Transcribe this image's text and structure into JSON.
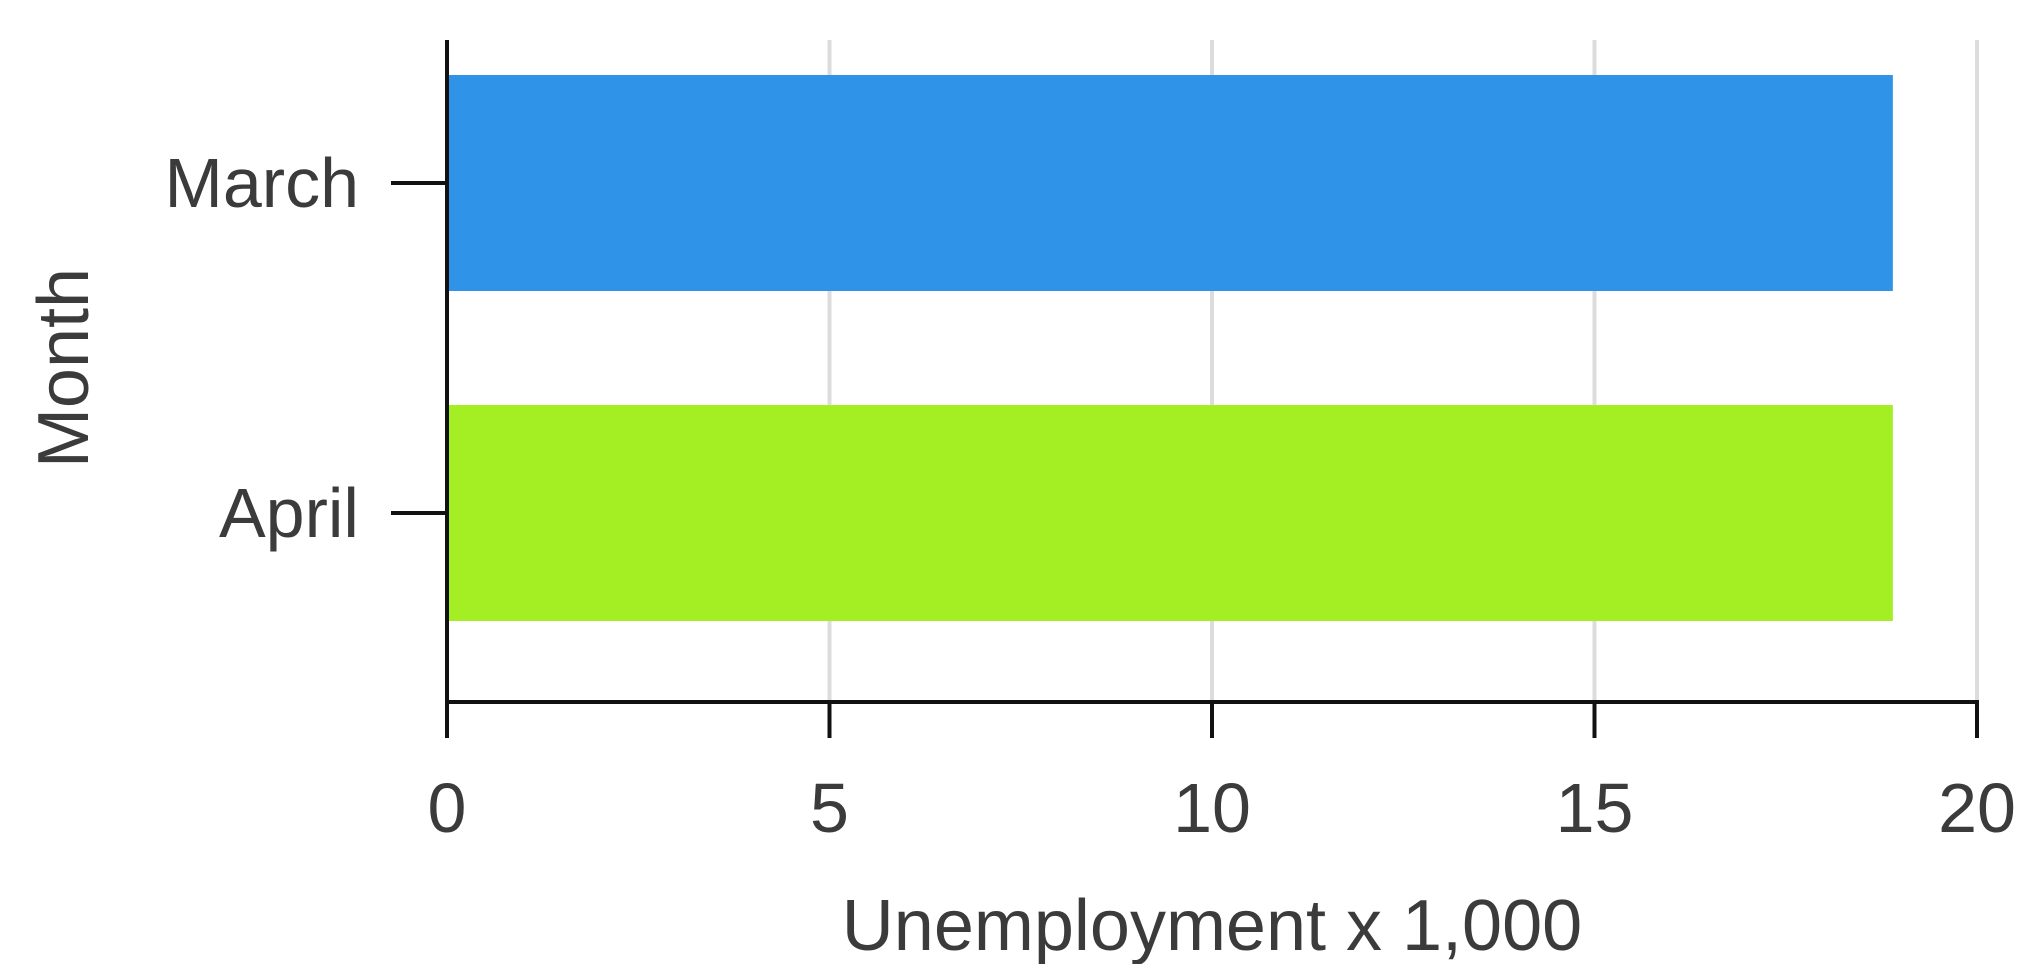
{
  "chart_data": {
    "type": "bar",
    "orientation": "horizontal",
    "title": "",
    "xlabel": "Unemployment x 1,000",
    "ylabel": "Month",
    "xlim": [
      0,
      20
    ],
    "x_ticks": [
      "0",
      "5",
      "10",
      "15",
      "20"
    ],
    "grid": true,
    "categories": [
      "March",
      "April"
    ],
    "values": [
      18.9,
      18.9
    ],
    "colors": [
      "#2f93e8",
      "#a3ef24"
    ]
  }
}
